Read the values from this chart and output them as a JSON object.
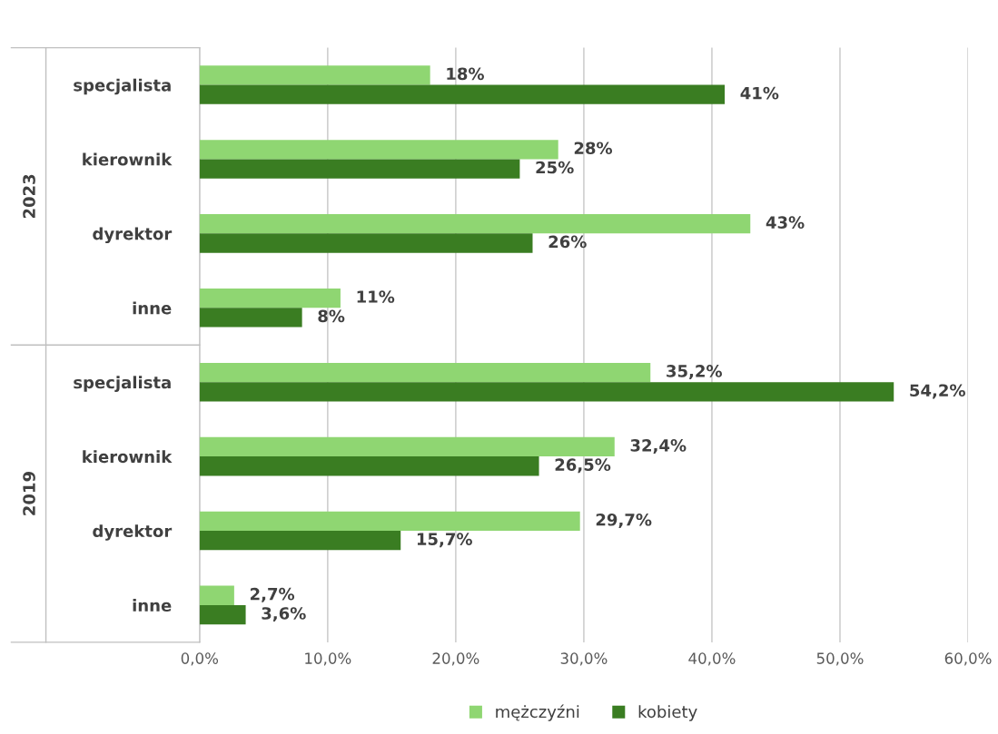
{
  "chart_data": {
    "type": "bar",
    "orientation": "horizontal",
    "categories": [
      "specjalista",
      "kierownik",
      "dyrektor",
      "inne",
      "specjalista",
      "kierownik",
      "dyrektor",
      "inne"
    ],
    "annotations": [
      "2023",
      "2019"
    ],
    "series": [
      {
        "name": "mężczyźni",
        "color": "#8fd672",
        "values": [
          18,
          28,
          43,
          11,
          35.2,
          32.4,
          29.7,
          2.7
        ],
        "value_labels": [
          "18%",
          "28%",
          "43%",
          "11%",
          "35,2%",
          "32,4%",
          "29,7%",
          "2,7%"
        ]
      },
      {
        "name": "kobiety",
        "color": "#3a7d22",
        "values": [
          41,
          25,
          26,
          8,
          54.2,
          26.5,
          15.7,
          3.6
        ],
        "value_labels": [
          "41%",
          "25%",
          "26%",
          "8%",
          "54,2%",
          "26,5%",
          "15,7%",
          "3,6%"
        ]
      }
    ],
    "xlim": [
      0,
      60
    ],
    "xticks": [
      {
        "value": 0,
        "label": "0,0%"
      },
      {
        "value": 10,
        "label": "10,0%"
      },
      {
        "value": 20,
        "label": "20,0%"
      },
      {
        "value": 30,
        "label": "30,0%"
      },
      {
        "value": 40,
        "label": "40,0%"
      },
      {
        "value": 50,
        "label": "50,0%"
      },
      {
        "value": 60,
        "label": "60,0%"
      }
    ],
    "grid": "x",
    "legend": "bottom"
  }
}
